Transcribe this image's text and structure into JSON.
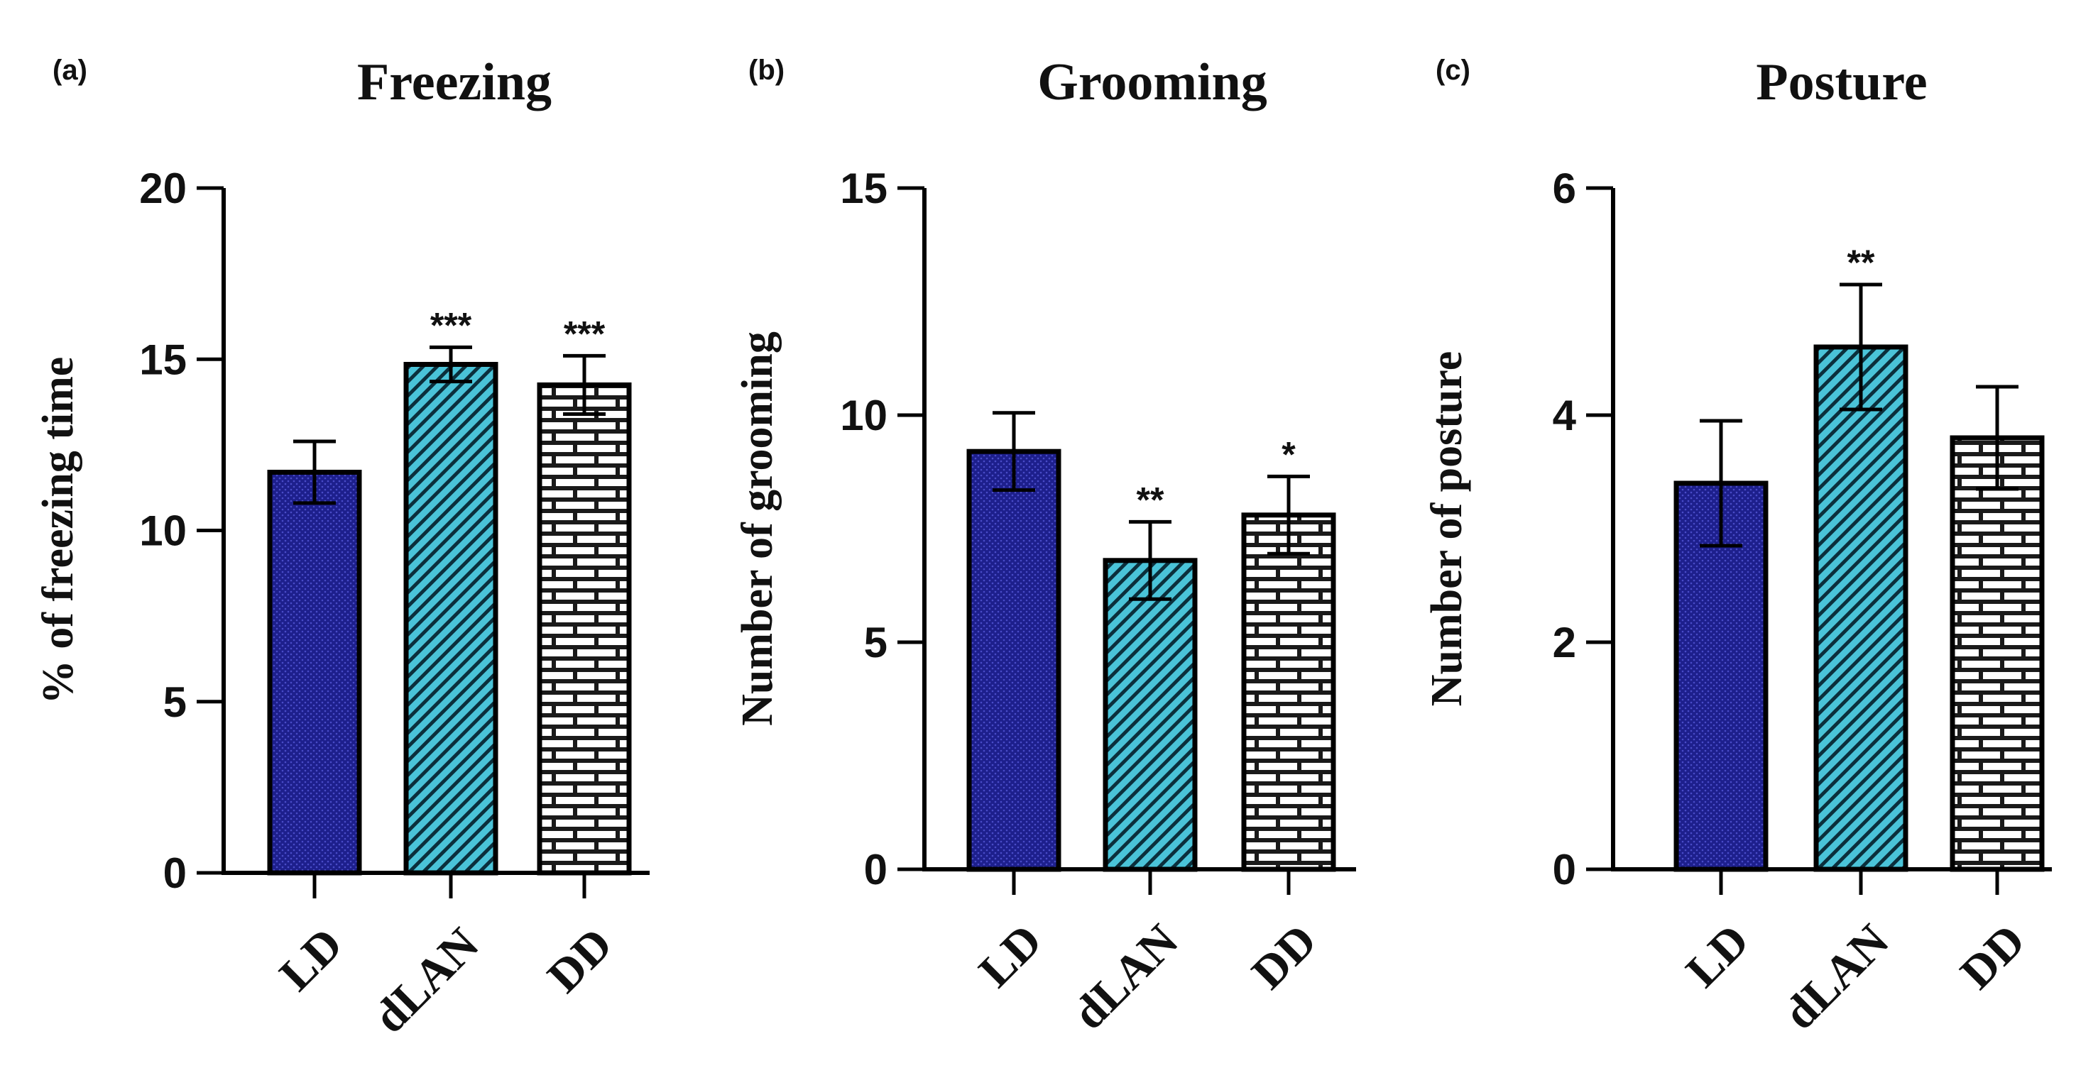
{
  "chart_data": [
    {
      "type": "bar",
      "panel_label": "(a)",
      "title": "Freezing",
      "xlabel": "",
      "ylabel": "% of freezing time",
      "ylim": [
        0,
        20
      ],
      "yticks": [
        0,
        5,
        10,
        15,
        20
      ],
      "categories": [
        "LD",
        "dLAN",
        "DD"
      ],
      "values": [
        11.7,
        14.85,
        14.25
      ],
      "errors": [
        0.9,
        0.5,
        0.85
      ],
      "significance": [
        "",
        "***",
        "***"
      ],
      "colors": [
        "#1d1f8c",
        "#4ac3d8",
        "#1a1a1a"
      ],
      "patterns": [
        "dots",
        "diagonal-stripes",
        "bricks"
      ]
    },
    {
      "type": "bar",
      "panel_label": "(b)",
      "title": "Grooming",
      "xlabel": "",
      "ylabel": "Number of grooming",
      "ylim": [
        0,
        15
      ],
      "yticks": [
        0,
        5,
        10,
        15
      ],
      "categories": [
        "LD",
        "dLAN",
        "DD"
      ],
      "values": [
        9.2,
        6.8,
        7.8
      ],
      "errors": [
        0.85,
        0.85,
        0.85
      ],
      "significance": [
        "",
        "**",
        "*"
      ],
      "colors": [
        "#1d1f8c",
        "#4ac3d8",
        "#1a1a1a"
      ],
      "patterns": [
        "dots",
        "diagonal-stripes",
        "bricks"
      ]
    },
    {
      "type": "bar",
      "panel_label": "(c)",
      "title": "Posture",
      "xlabel": "",
      "ylabel": "Number of posture",
      "ylim": [
        0,
        6
      ],
      "yticks": [
        0,
        2,
        4,
        6
      ],
      "categories": [
        "LD",
        "dLAN",
        "DD"
      ],
      "values": [
        3.4,
        4.6,
        3.8
      ],
      "errors": [
        0.55,
        0.55,
        0.45
      ],
      "significance": [
        "",
        "**",
        ""
      ],
      "colors": [
        "#1d1f8c",
        "#4ac3d8",
        "#1a1a1a"
      ],
      "patterns": [
        "dots",
        "diagonal-stripes",
        "bricks"
      ]
    }
  ]
}
